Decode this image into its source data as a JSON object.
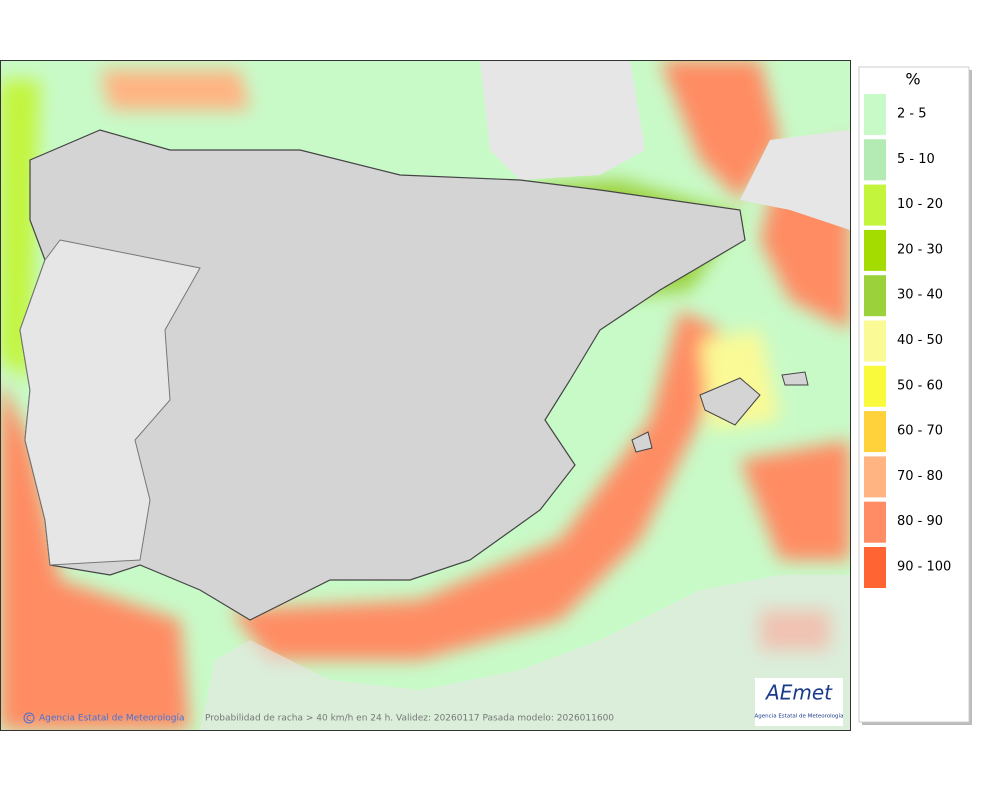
{
  "legend": {
    "title": "%",
    "items": [
      {
        "label": "2 - 5",
        "color": "#c8fac8"
      },
      {
        "label": "5 - 10",
        "color": "#b4ebb4"
      },
      {
        "label": "10 - 20",
        "color": "#c3f53c"
      },
      {
        "label": "20 - 30",
        "color": "#a5dc00"
      },
      {
        "label": "30 - 40",
        "color": "#9bd23c"
      },
      {
        "label": "40 - 50",
        "color": "#fafa96"
      },
      {
        "label": "50 - 60",
        "color": "#fafa3c"
      },
      {
        "label": "60 - 70",
        "color": "#ffd23c"
      },
      {
        "label": "70 - 80",
        "color": "#ffb482"
      },
      {
        "label": "80 - 90",
        "color": "#ff8c64"
      },
      {
        "label": "90 - 100",
        "color": "#ff6432"
      }
    ]
  },
  "footer": {
    "credit": "Agencia Estatal de Meteorología",
    "caption": "Probabilidad de racha > 40 km/h en 24 h. Validez: 20260117 Pasada modelo: 2026011600"
  },
  "logo": {
    "name": "AEmet",
    "subtitle": "Agencia Estatal de Meteorología"
  }
}
